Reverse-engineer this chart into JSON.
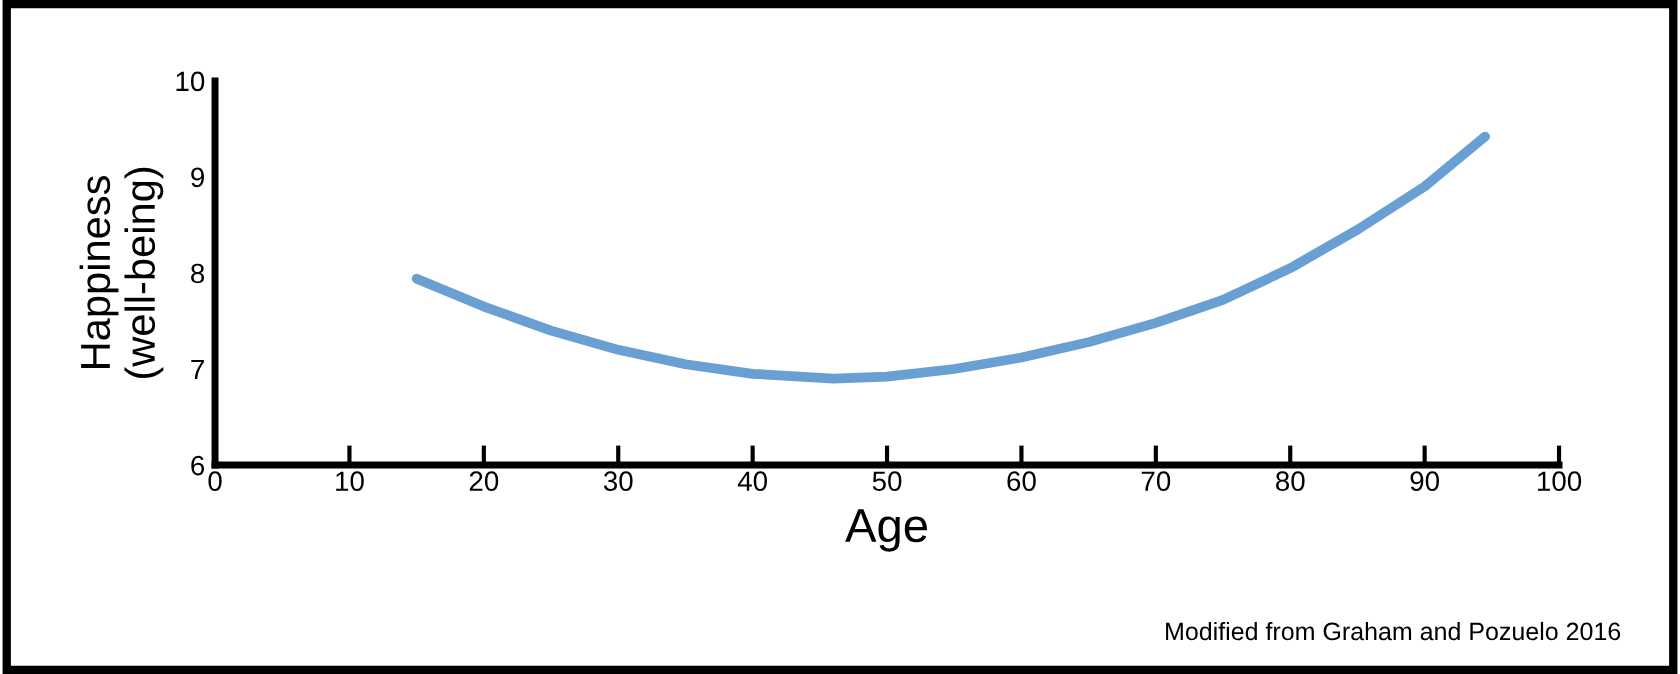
{
  "chart_data": {
    "type": "line",
    "xlabel": "Age",
    "ylabel": "Happiness\n(well-being)",
    "x": [
      15,
      20,
      25,
      30,
      35,
      40,
      46,
      50,
      55,
      60,
      65,
      70,
      75,
      80,
      85,
      90,
      94.5
    ],
    "series": [
      {
        "color": "#6a9fd3",
        "values": [
          7.94,
          7.65,
          7.4,
          7.2,
          7.05,
          6.95,
          6.9,
          6.92,
          7.0,
          7.12,
          7.28,
          7.48,
          7.72,
          8.05,
          8.45,
          8.9,
          9.42
        ]
      }
    ],
    "xlim": [
      0,
      100
    ],
    "xticks": [
      0,
      10,
      20,
      30,
      40,
      50,
      60,
      70,
      80,
      90,
      100
    ],
    "ylim": [
      6,
      10
    ],
    "yticks": [
      6,
      7,
      8,
      9,
      10
    ],
    "grid": false,
    "marker": "none",
    "line_style": "solid",
    "annotations": [
      "Modified from Graham and Pozuelo 2016"
    ]
  }
}
